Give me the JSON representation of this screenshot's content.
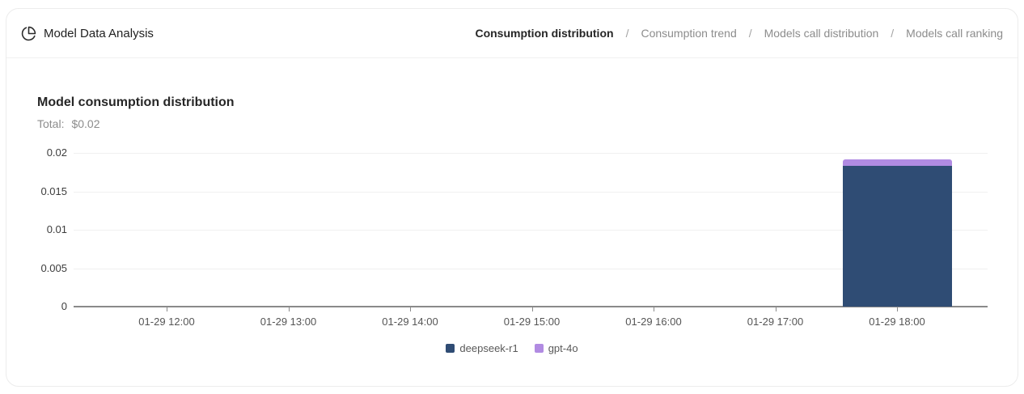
{
  "header": {
    "icon": "pie-chart-icon",
    "title": "Model Data Analysis",
    "separator": "/",
    "tabs": [
      {
        "label": "Consumption distribution",
        "active": true
      },
      {
        "label": "Consumption trend",
        "active": false
      },
      {
        "label": "Models call distribution",
        "active": false
      },
      {
        "label": "Models call ranking",
        "active": false
      }
    ]
  },
  "panel": {
    "title": "Model consumption distribution",
    "total_label": "Total:",
    "total_value": "$0.02"
  },
  "chart_data": {
    "type": "bar",
    "stacked": true,
    "title": "Model consumption distribution",
    "categories": [
      "01-29 12:00",
      "01-29 13:00",
      "01-29 14:00",
      "01-29 15:00",
      "01-29 16:00",
      "01-29 17:00",
      "01-29 18:00"
    ],
    "series": [
      {
        "name": "deepseek-r1",
        "color": "#2f4c74",
        "values": [
          0,
          0,
          0,
          0,
          0,
          0,
          0.0183
        ]
      },
      {
        "name": "gpt-4o",
        "color": "#b18be2",
        "values": [
          0,
          0,
          0,
          0,
          0,
          0,
          0.0009
        ]
      }
    ],
    "xlabel": "",
    "ylabel": "",
    "ylim": [
      0,
      0.02
    ],
    "yticks": [
      0,
      0.005,
      0.01,
      0.015,
      0.02
    ],
    "grid": true,
    "legend_position": "bottom"
  }
}
